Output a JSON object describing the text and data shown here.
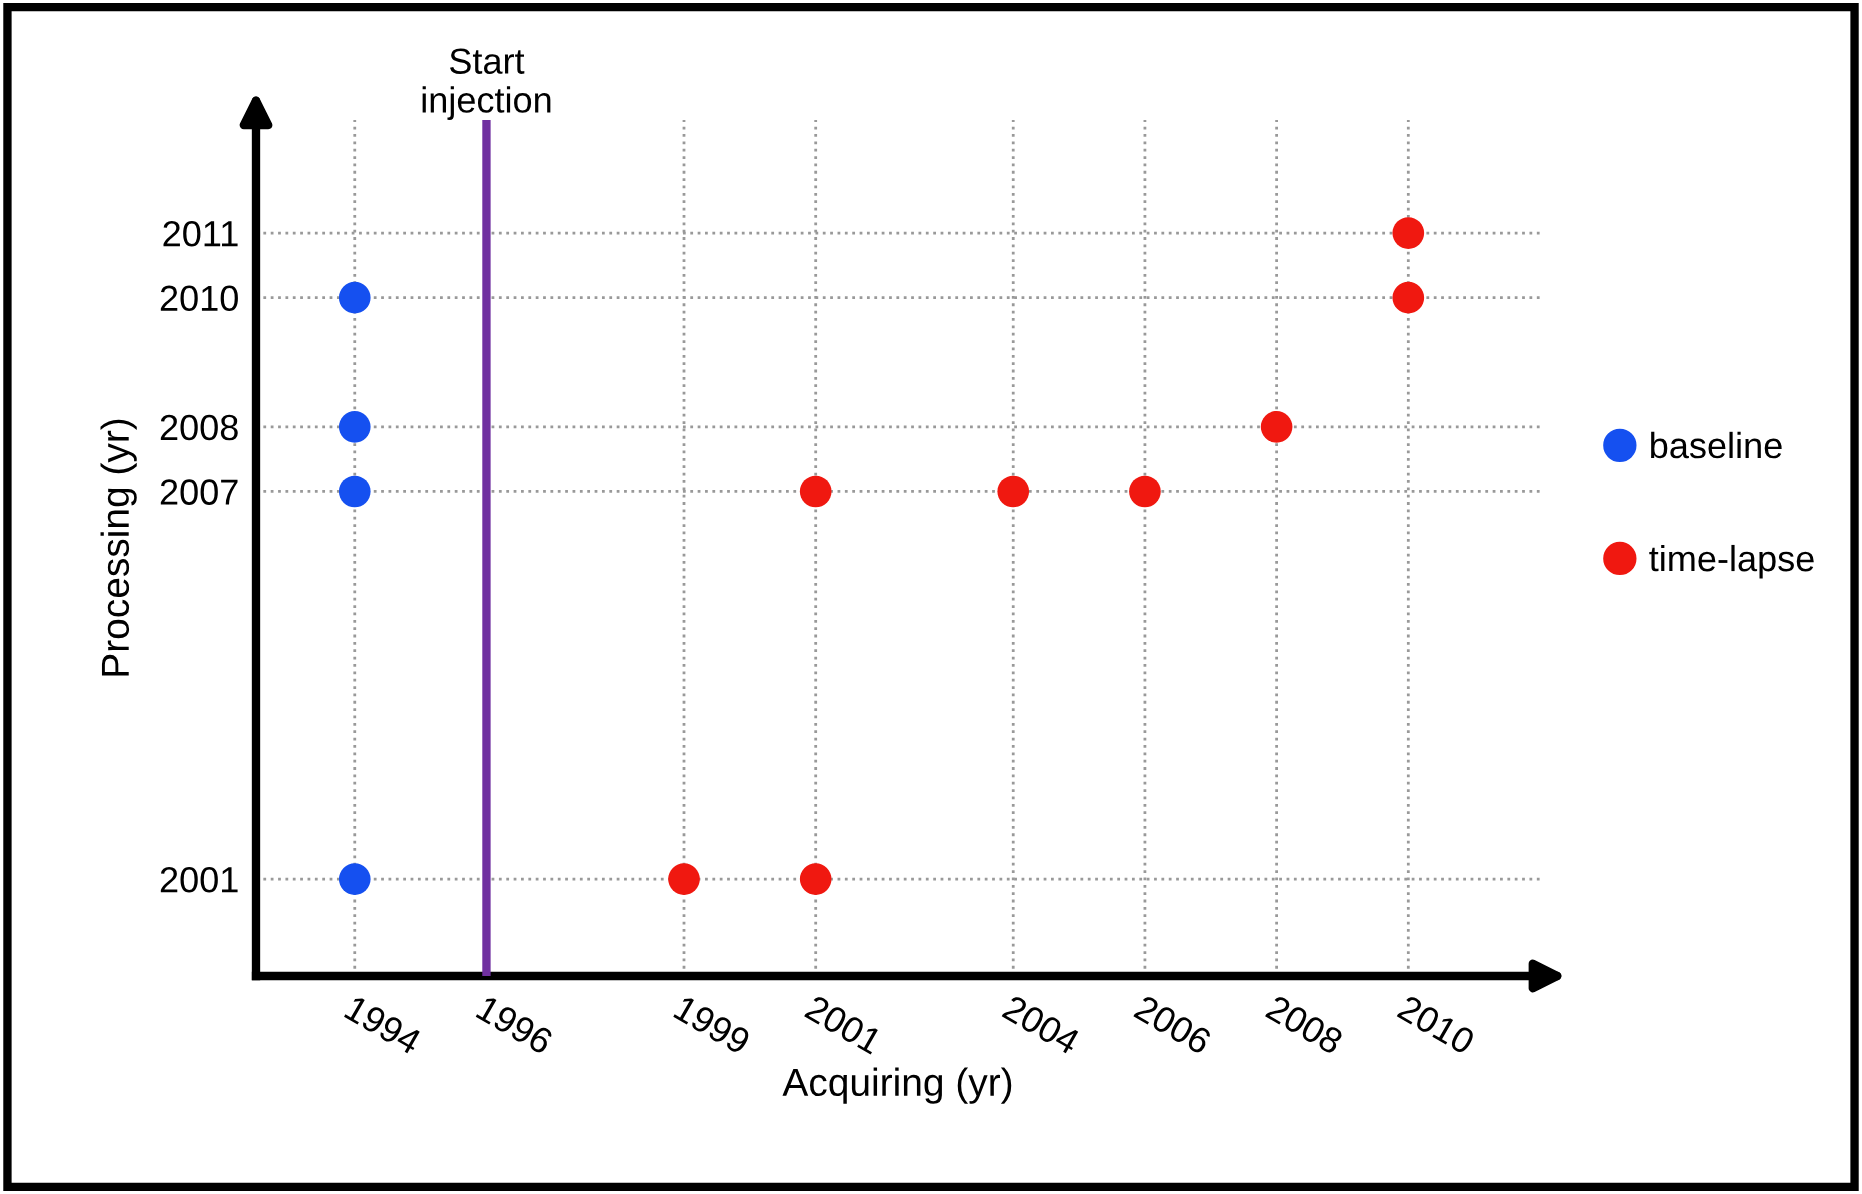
{
  "chart_data": {
    "type": "scatter",
    "xlabel": "Acquiring (yr)",
    "ylabel": "Processing (yr)",
    "series": [
      {
        "name": "baseline",
        "color": "#1550f0",
        "x": [
          1994,
          1994,
          1994,
          1994
        ],
        "values": [
          2010,
          2008,
          2007,
          2001
        ]
      },
      {
        "name": "time-lapse",
        "color": "#f01810",
        "x": [
          1999,
          2001,
          2001,
          2004,
          2006,
          2008,
          2010,
          2010
        ],
        "values": [
          2001,
          2001,
          2007,
          2007,
          2007,
          2008,
          2010,
          2011
        ]
      }
    ],
    "xlim": [
      1992.5,
      2012
    ],
    "xticks": [
      1994,
      1996,
      1999,
      2001,
      2004,
      2006,
      2008,
      2010
    ],
    "ylim": [
      1999.5,
      2012.75
    ],
    "yticks": [
      2001,
      2007,
      2008,
      2010,
      2011
    ],
    "ref_lines": [
      {
        "axis": "x",
        "value": 1996,
        "label": "Start\ninjection",
        "color": "#7030a0"
      }
    ],
    "grid": true,
    "legend": "right",
    "marker": "circle"
  }
}
